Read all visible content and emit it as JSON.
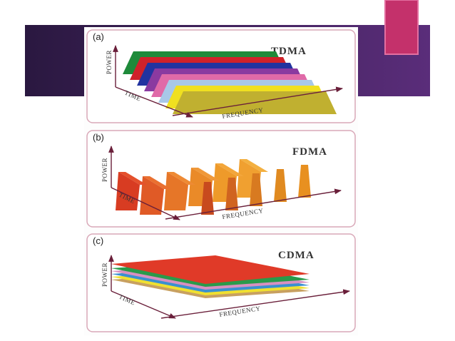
{
  "panels": [
    {
      "label": "(a)",
      "title": "TDMA",
      "y_axis": "POWER",
      "depth_axis": "TIME",
      "x_axis": "FREQUENCY"
    },
    {
      "label": "(b)",
      "title": "FDMA",
      "y_axis": "POWER",
      "depth_axis": "TIME",
      "x_axis": "FREQUENCY"
    },
    {
      "label": "(c)",
      "title": "CDMA",
      "y_axis": "POWER",
      "depth_axis": "TIME",
      "x_axis": "FREQUENCY"
    }
  ]
}
